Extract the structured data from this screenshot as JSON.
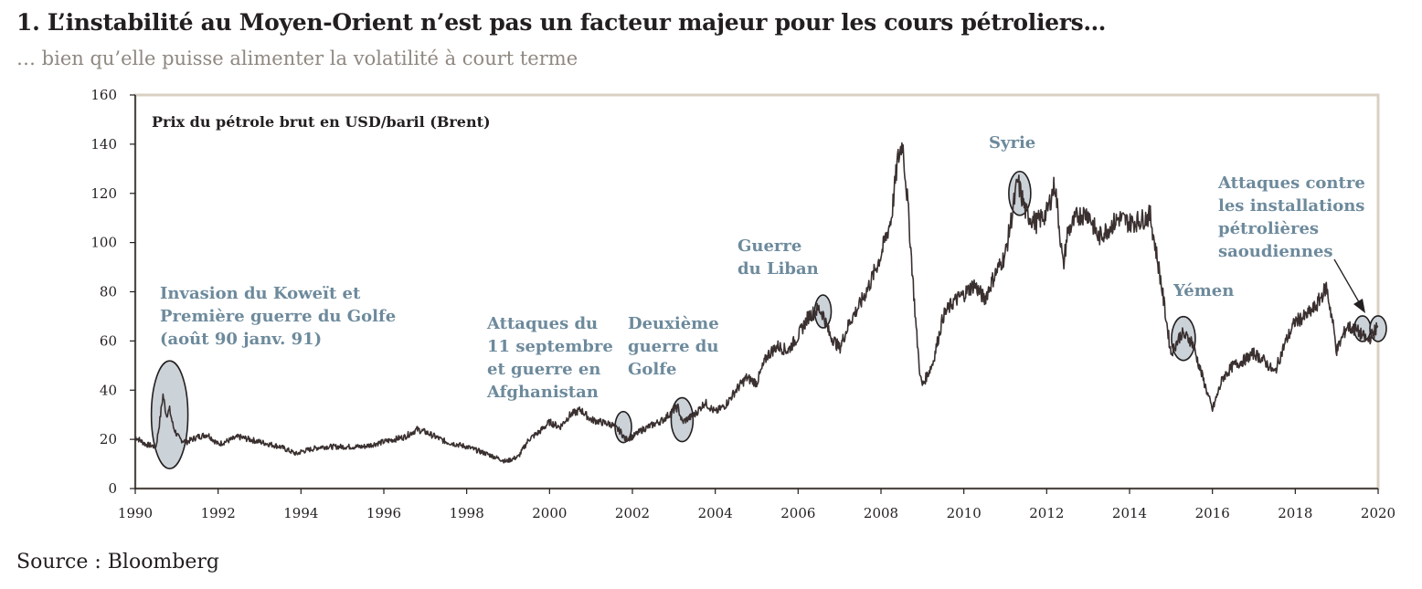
{
  "header": {
    "title": "1. L’instabilité au Moyen-Orient n’est pas un facteur majeur pour les cours pétroliers…",
    "subtitle": "… bien qu’elle puisse alimenter la volatilité à court terme"
  },
  "footer": {
    "source": "Source : Bloomberg"
  },
  "colors": {
    "line": "#3a3030",
    "frame": "#d9d0c3",
    "annotation": "#6d8a9c",
    "ellipse_fill": "#cbd2d8"
  },
  "chart_data": {
    "type": "line",
    "title": "Prix du pétrole brut en USD/baril (Brent)",
    "xlabel": "",
    "ylabel": "",
    "xlim": [
      1990,
      2020
    ],
    "ylim": [
      0,
      160
    ],
    "x_ticks": [
      "1990",
      "1992",
      "1994",
      "1996",
      "1998",
      "2000",
      "2002",
      "2004",
      "2006",
      "2008",
      "2010",
      "2012",
      "2014",
      "2016",
      "2018",
      "2020"
    ],
    "y_ticks": [
      "0",
      "20",
      "40",
      "60",
      "80",
      "100",
      "120",
      "140",
      "160"
    ],
    "grid": false,
    "series": [
      {
        "x": [
          1990.0,
          1990.25,
          1990.5,
          1990.58,
          1990.67,
          1990.75,
          1990.83,
          1990.92,
          1991.0,
          1991.08,
          1991.25,
          1991.5,
          1991.75,
          1992.0,
          1992.5,
          1993.0,
          1993.5,
          1993.9,
          1994.0,
          1994.5,
          1995.0,
          1995.5,
          1996.0,
          1996.5,
          1996.8,
          1997.0,
          1997.5,
          1998.0,
          1998.5,
          1998.95,
          1999.25,
          1999.5,
          1999.75,
          2000.0,
          2000.25,
          2000.5,
          2000.75,
          2001.0,
          2001.25,
          2001.5,
          2001.72,
          2001.83,
          2002.0,
          2002.25,
          2002.5,
          2002.75,
          2003.0,
          2003.1,
          2003.2,
          2003.3,
          2003.5,
          2003.75,
          2004.0,
          2004.25,
          2004.5,
          2004.75,
          2005.0,
          2005.25,
          2005.5,
          2005.75,
          2006.0,
          2006.25,
          2006.5,
          2006.6,
          2006.75,
          2007.0,
          2007.25,
          2007.5,
          2007.75,
          2008.0,
          2008.25,
          2008.4,
          2008.52,
          2008.65,
          2008.75,
          2008.85,
          2008.95,
          2009.0,
          2009.25,
          2009.5,
          2009.75,
          2010.0,
          2010.25,
          2010.5,
          2010.75,
          2011.0,
          2011.15,
          2011.3,
          2011.5,
          2011.75,
          2012.0,
          2012.2,
          2012.4,
          2012.5,
          2012.75,
          2013.0,
          2013.25,
          2013.5,
          2013.75,
          2014.0,
          2014.25,
          2014.5,
          2014.75,
          2015.0,
          2015.25,
          2015.5,
          2015.75,
          2016.0,
          2016.25,
          2016.5,
          2016.75,
          2017.0,
          2017.25,
          2017.5,
          2017.75,
          2018.0,
          2018.25,
          2018.5,
          2018.75,
          2018.9,
          2019.0,
          2019.25,
          2019.5,
          2019.75,
          2020.0
        ],
        "values": [
          21,
          18,
          17,
          26,
          38,
          30,
          32,
          25,
          22,
          20,
          19,
          21,
          22,
          18,
          21,
          19,
          17,
          14,
          15,
          17,
          17,
          17,
          19,
          21,
          24,
          23,
          19,
          17,
          14,
          11,
          13,
          20,
          23,
          27,
          25,
          30,
          32,
          28,
          27,
          26,
          23,
          20,
          21,
          24,
          26,
          28,
          32,
          33,
          27,
          28,
          30,
          35,
          31,
          34,
          40,
          45,
          43,
          54,
          58,
          56,
          62,
          70,
          73,
          71,
          63,
          57,
          68,
          75,
          84,
          95,
          110,
          133,
          141,
          115,
          90,
          65,
          45,
          42,
          51,
          70,
          76,
          79,
          83,
          77,
          87,
          95,
          110,
          125,
          112,
          108,
          112,
          124,
          90,
          104,
          111,
          112,
          102,
          106,
          110,
          108,
          109,
          111,
          85,
          55,
          63,
          60,
          46,
          32,
          45,
          50,
          52,
          55,
          52,
          47,
          59,
          68,
          70,
          74,
          82,
          68,
          56,
          66,
          64,
          60,
          66
        ]
      }
    ],
    "annotations": [
      {
        "lines": [
          "Invasion du Koweït et",
          "Première guerre du Golfe",
          "(août 90 janv. 91)"
        ]
      },
      {
        "lines": [
          "Attaques du",
          "11 septembre",
          "et guerre en",
          "Afghanistan"
        ]
      },
      {
        "lines": [
          "Deuxième",
          "guerre du",
          "Golfe"
        ]
      },
      {
        "lines": [
          "Guerre",
          "du Liban"
        ]
      },
      {
        "lines": [
          "Syrie"
        ]
      },
      {
        "lines": [
          "Yémen"
        ]
      },
      {
        "lines": [
          "Attaques contre",
          "les installations",
          "pétrolières",
          "saoudiennes"
        ]
      }
    ]
  }
}
